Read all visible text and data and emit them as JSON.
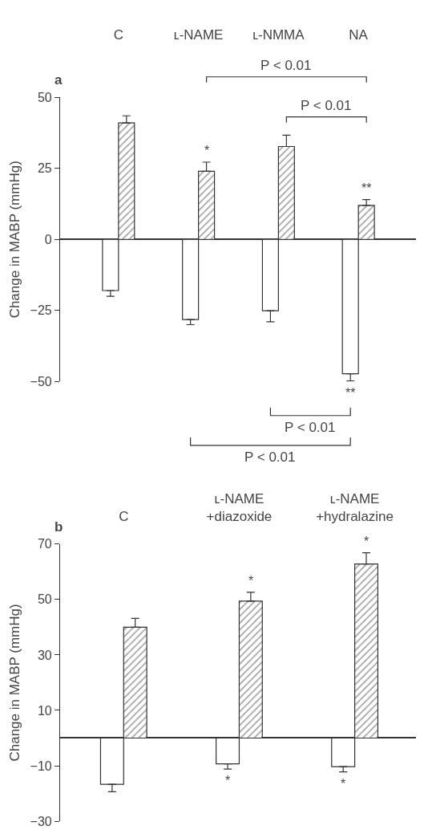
{
  "chart_data": [
    {
      "type": "bar",
      "categories": [
        "C",
        "ʟ-NAME",
        "ʟ-NMMA",
        "NA"
      ],
      "ylabel": "Change in MABP (mmHg)",
      "ylim": [
        -50,
        50
      ],
      "yticks": [
        -50,
        -25,
        0,
        25,
        50
      ],
      "series": [
        {
          "color": "#ffffff",
          "values": [
            -18,
            -28.2,
            -25.1,
            -47.3
          ],
          "errors": [
            [
              -20,
              -18
            ],
            [
              -30,
              -28.2
            ],
            [
              -29,
              -25.1
            ],
            [
              -49.8,
              -47.3
            ]
          ]
        },
        {
          "color": "#333333",
          "values": [
            41,
            24,
            32.7,
            12
          ],
          "errors": [
            [
              41,
              43.5
            ],
            [
              24,
              27.2
            ],
            [
              32.7,
              36.7
            ],
            [
              12,
              14
            ]
          ]
        }
      ],
      "annotations": [
        "a",
        {
          "text": "*",
          "x": "ʟ-NAME",
          "y": 27.2
        },
        {
          "text": "**",
          "x": "NA",
          "y": 14
        },
        {
          "text": "**",
          "x": "NA",
          "y": -49.8
        },
        "P < 0.01",
        "P < 0.01",
        "P < 0.01",
        "P < 0.01"
      ]
    },
    {
      "type": "bar",
      "categories": [
        "C",
        "ʟ-NAME\n+diazoxide",
        "ʟ-NAME\n+hydralazine"
      ],
      "ylabel": "Change in MABP (mmHg)",
      "ylim": [
        -30,
        70
      ],
      "yticks": [
        -30,
        -10,
        10,
        30,
        50,
        70
      ],
      "series": [
        {
          "color": "#ffffff",
          "values": [
            -16.7,
            -9.3,
            -10.3
          ],
          "errors": [
            [
              -19.4,
              -16.7
            ],
            [
              -11.2,
              -9.3
            ],
            [
              -12.2,
              -10.3
            ]
          ]
        },
        {
          "color": "#333333",
          "values": [
            40,
            49.4,
            62.8
          ],
          "errors": [
            [
              40,
              43.2
            ],
            [
              49.4,
              52.6
            ],
            [
              62.8,
              66.9
            ]
          ]
        }
      ],
      "annotations": [
        "b",
        "*",
        "*",
        "*",
        "*"
      ]
    }
  ]
}
